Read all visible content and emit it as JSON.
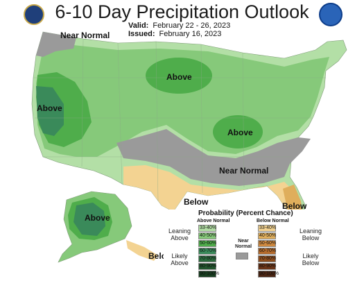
{
  "title": "6-10 Day Precipitation Outlook",
  "valid_label": "Valid:",
  "valid_dates": "February 22 - 26, 2023",
  "issued_label": "Issued:",
  "issued_date": "February 16, 2023",
  "logos": {
    "left": "noaa-seal-icon",
    "right": "noaa-logo-icon"
  },
  "map_labels": {
    "near_normal_nw": "Near Normal",
    "above_west": "Above",
    "above_north": "Above",
    "above_midwest": "Above",
    "near_normal_south": "Near Normal",
    "below_texas": "Below",
    "below_florida": "Below",
    "above_alaska": "Above",
    "below_alaska": "Below"
  },
  "legend": {
    "title": "Probability (Percent Chance)",
    "above_header": "Above Normal",
    "below_header": "Below Normal",
    "near_header": "Near Normal",
    "leaning_above": "Leaning Above",
    "likely_above": "Likely Above",
    "leaning_below": "Leaning Below",
    "likely_below": "Likely Below",
    "above_bins": [
      {
        "label": "33-40%",
        "color": "#b3dfa6"
      },
      {
        "label": "40-50%",
        "color": "#86c97a"
      },
      {
        "label": "50-60%",
        "color": "#4fad4b"
      },
      {
        "label": "60-70%",
        "color": "#3a8a5a"
      },
      {
        "label": "70-80%",
        "color": "#2c6b3e"
      },
      {
        "label": "80-90%",
        "color": "#22552e"
      },
      {
        "label": "90-100%",
        "color": "#173d1f"
      }
    ],
    "below_bins": [
      {
        "label": "33-40%",
        "color": "#f3d392"
      },
      {
        "label": "40-50%",
        "color": "#dfae5c"
      },
      {
        "label": "50-60%",
        "color": "#d08a40"
      },
      {
        "label": "60-70%",
        "color": "#b46b2c"
      },
      {
        "label": "70-80%",
        "color": "#8e4e1e"
      },
      {
        "label": "80-90%",
        "color": "#6a3418"
      },
      {
        "label": "90-100%",
        "color": "#4a2412"
      }
    ],
    "near_color": "#9a9a9a"
  }
}
